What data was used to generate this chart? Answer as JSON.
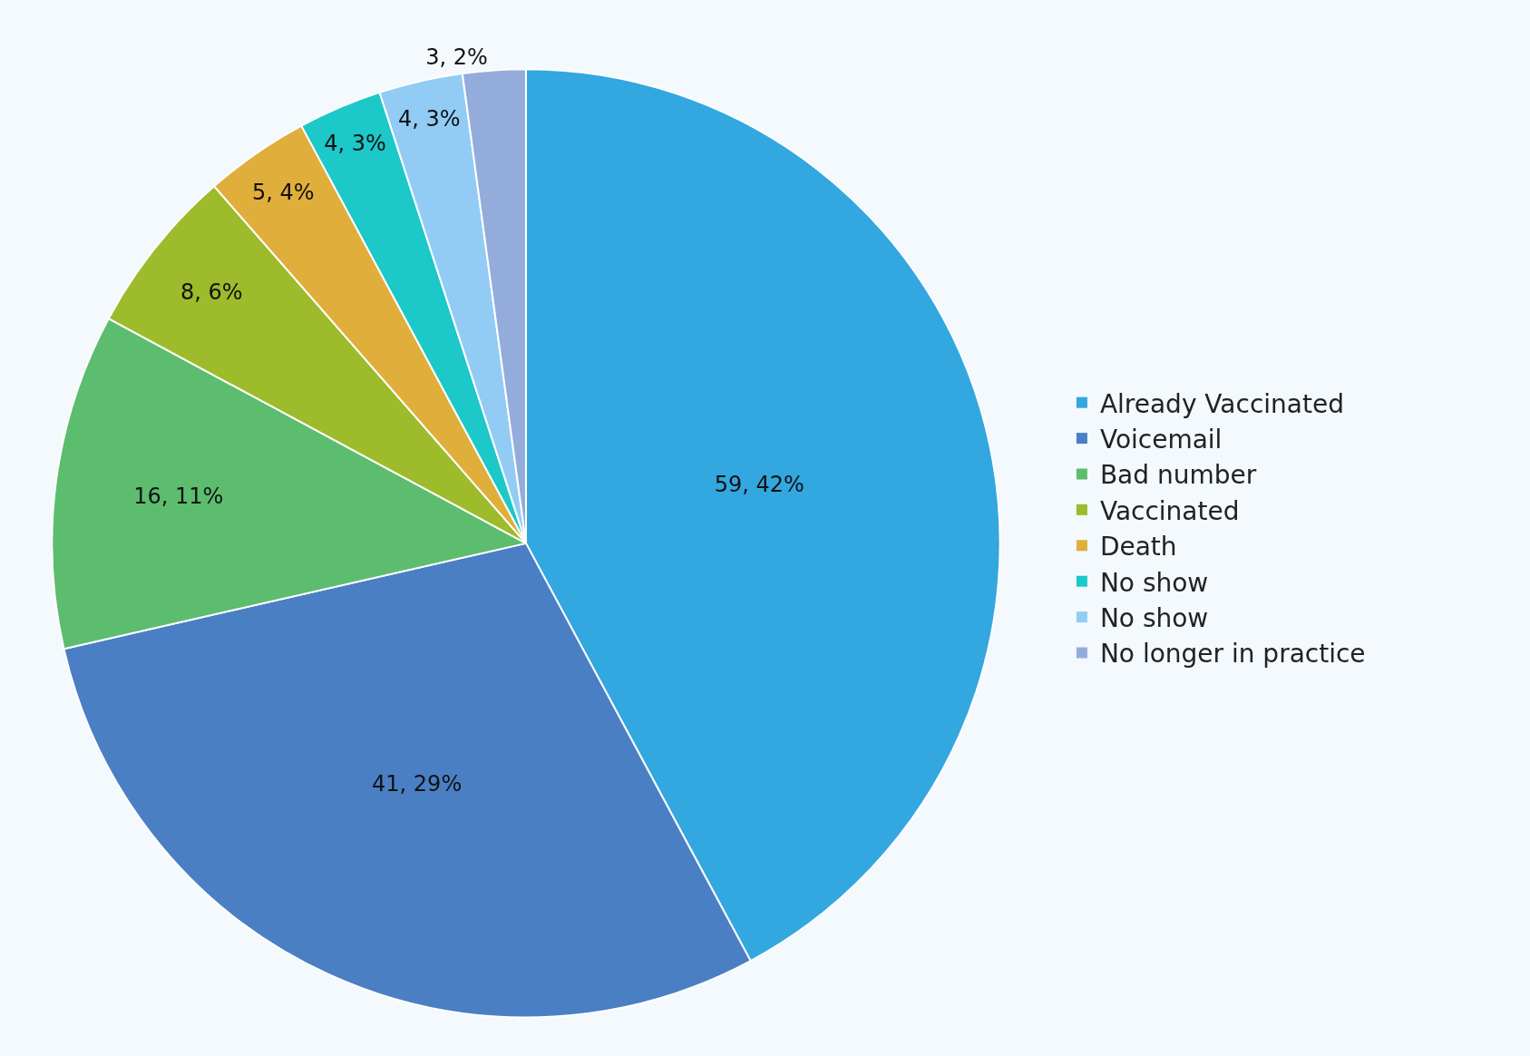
{
  "chart_data": {
    "type": "pie",
    "categories": [
      "Already Vaccinated",
      "Voicemail",
      "Bad number",
      "Vaccinated",
      "Death",
      "No show",
      "No show",
      "No longer in practice"
    ],
    "values": [
      59,
      41,
      16,
      8,
      5,
      4,
      4,
      3
    ],
    "value_labels": [
      "59, 42%",
      "41, 29%",
      "16, 11%",
      "8, 6%",
      "5, 4%",
      "4, 3%",
      "4, 3%",
      "3, 2%"
    ],
    "colors": [
      "#33a7e0",
      "#4a7fc4",
      "#5cbd6e",
      "#9dbb2a",
      "#e0ae3a",
      "#1cc8c8",
      "#92ccf5",
      "#94acdc"
    ],
    "legend": "right"
  }
}
